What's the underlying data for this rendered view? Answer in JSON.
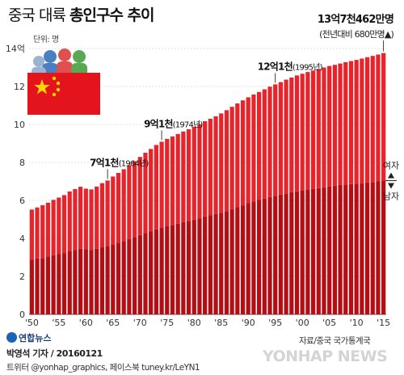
{
  "header": {
    "title_plain": "중국 대륙 ",
    "title_bold": "총인구수 추이",
    "unit": "단위: 명"
  },
  "footer": {
    "source": "자료/중국 국가통계국",
    "logo": "연합뉴스",
    "reporter": "박영석 기자 / 20160121",
    "social": "트위터 @yonhap_graphics, 페이스북 tuney.kr/LeYN1",
    "watermark": "YONHAP NEWS"
  },
  "colors": {
    "bar_light": "#e8242a",
    "bar_dark": "#b50d14",
    "ann": "#111111"
  },
  "icons": [
    "china-flag-icon",
    "people-icon",
    "arrow-up-icon",
    "arrow-down-icon"
  ],
  "chart_data": {
    "type": "bar",
    "stacked": true,
    "title": "중국 대륙 총인구수 추이",
    "ylabel": "단위: 명",
    "ylim": [
      0,
      14
    ],
    "yticks": [
      0,
      2,
      4,
      6,
      8,
      10,
      12,
      14
    ],
    "ytick_labels": [
      "0",
      "2",
      "4",
      "6",
      "8",
      "10",
      "12",
      "14억"
    ],
    "xtick_labels": [
      "'50",
      "'55",
      "'60",
      "'65",
      "'70",
      "'75",
      "'80",
      "'85",
      "'90",
      "'95",
      "'00",
      "'05",
      "'10",
      "'15"
    ],
    "x": [
      1950,
      1951,
      1952,
      1953,
      1954,
      1955,
      1956,
      1957,
      1958,
      1959,
      1960,
      1961,
      1962,
      1963,
      1964,
      1965,
      1966,
      1967,
      1968,
      1969,
      1970,
      1971,
      1972,
      1973,
      1974,
      1975,
      1976,
      1977,
      1978,
      1979,
      1980,
      1981,
      1982,
      1983,
      1984,
      1985,
      1986,
      1987,
      1988,
      1989,
      1990,
      1991,
      1992,
      1993,
      1994,
      1995,
      1996,
      1997,
      1998,
      1999,
      2000,
      2001,
      2002,
      2003,
      2004,
      2005,
      2006,
      2007,
      2008,
      2009,
      2010,
      2011,
      2012,
      2013,
      2014,
      2015
    ],
    "series": [
      {
        "name": "남자",
        "values": [
          2.87,
          2.94,
          2.97,
          3.04,
          3.11,
          3.17,
          3.23,
          3.32,
          3.4,
          3.46,
          3.44,
          3.4,
          3.45,
          3.53,
          3.6,
          3.69,
          3.78,
          3.86,
          3.96,
          4.07,
          4.18,
          4.28,
          4.38,
          4.48,
          4.57,
          4.64,
          4.71,
          4.78,
          4.85,
          4.92,
          4.99,
          5.06,
          5.16,
          5.23,
          5.28,
          5.35,
          5.43,
          5.53,
          5.64,
          5.74,
          5.85,
          5.94,
          6.02,
          6.1,
          6.18,
          6.24,
          6.31,
          6.37,
          6.43,
          6.48,
          6.54,
          6.58,
          6.61,
          6.65,
          6.69,
          6.74,
          6.77,
          6.81,
          6.84,
          6.86,
          6.87,
          6.91,
          6.94,
          6.97,
          7.0,
          7.04
        ]
      },
      {
        "name": "여자",
        "values": [
          2.65,
          2.69,
          2.78,
          2.84,
          2.92,
          2.98,
          3.05,
          3.15,
          3.2,
          3.26,
          3.18,
          3.18,
          3.28,
          3.38,
          3.45,
          3.57,
          3.67,
          3.78,
          3.89,
          4.0,
          4.11,
          4.23,
          4.33,
          4.44,
          4.52,
          4.6,
          4.66,
          4.72,
          4.78,
          4.83,
          4.88,
          4.95,
          5.01,
          5.07,
          5.15,
          5.23,
          5.32,
          5.4,
          5.47,
          5.53,
          5.58,
          5.64,
          5.69,
          5.75,
          5.81,
          5.87,
          5.92,
          5.99,
          6.04,
          6.1,
          6.13,
          6.18,
          6.23,
          6.27,
          6.31,
          6.34,
          6.37,
          6.4,
          6.44,
          6.48,
          6.53,
          6.56,
          6.6,
          6.64,
          6.68,
          6.72
        ]
      }
    ],
    "annotations": [
      {
        "year": 1964,
        "strong": "7억1천",
        "sub": "(1964년)"
      },
      {
        "year": 1974,
        "strong": "9억1천",
        "sub": "(1974년)"
      },
      {
        "year": 1995,
        "strong": "12억1천",
        "sub": "(1995년)"
      },
      {
        "year": 2015,
        "strong": "13억7천462만명",
        "sub": "(전년대비 680만명▲)"
      }
    ],
    "legend": {
      "female": "여자",
      "male": "남자"
    }
  }
}
